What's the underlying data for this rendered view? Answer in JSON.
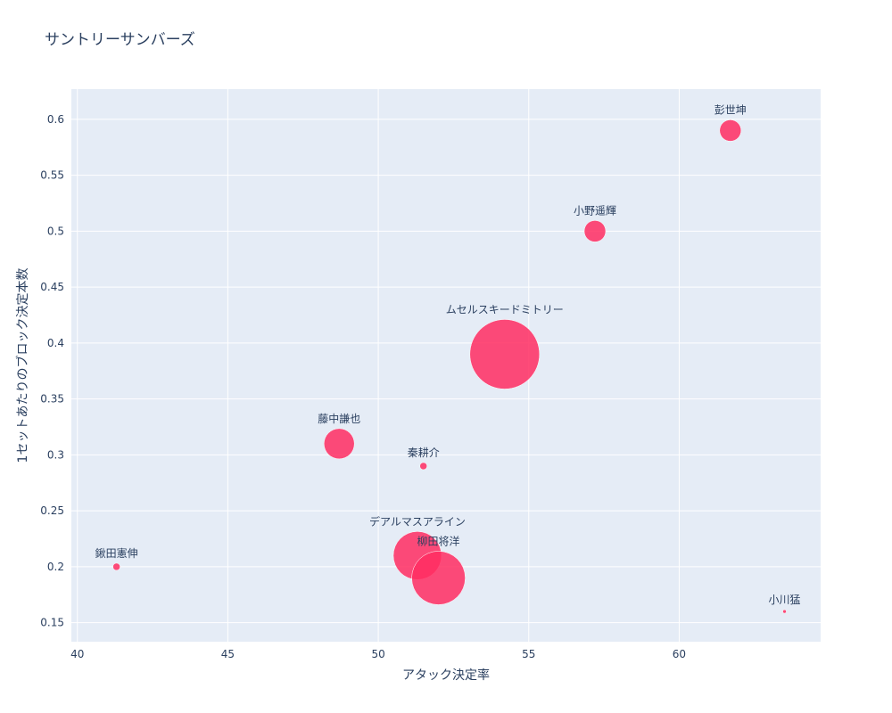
{
  "chart_data": {
    "type": "scatter",
    "title": "サントリーサンバーズ",
    "xlabel": "アタック決定率",
    "ylabel": "1セットあたりのブロック決定本数",
    "xlim": [
      39.8,
      64.7
    ],
    "ylim": [
      0.133,
      0.627
    ],
    "x_ticks": [
      40,
      45,
      50,
      55,
      60
    ],
    "y_ticks": [
      0.15,
      0.2,
      0.25,
      0.3,
      0.35,
      0.4,
      0.45,
      0.5,
      0.55,
      0.6
    ],
    "grid": true,
    "marker_color": "#ff2d62",
    "points": [
      {
        "label": "彭世坤",
        "x": 61.7,
        "y": 0.59,
        "size": 12
      },
      {
        "label": "小野遥輝",
        "x": 57.2,
        "y": 0.5,
        "size": 12
      },
      {
        "label": "ムセルスキードミトリー",
        "x": 54.2,
        "y": 0.39,
        "size": 39
      },
      {
        "label": "藤中謙也",
        "x": 48.7,
        "y": 0.31,
        "size": 17
      },
      {
        "label": "秦耕介",
        "x": 51.5,
        "y": 0.29,
        "size": 4
      },
      {
        "label": "デアルマスアライン",
        "x": 51.3,
        "y": 0.21,
        "size": 27
      },
      {
        "label": "柳田将洋",
        "x": 52.0,
        "y": 0.19,
        "size": 30
      },
      {
        "label": "鍬田憲伸",
        "x": 41.3,
        "y": 0.2,
        "size": 4
      },
      {
        "label": "小川猛",
        "x": 63.5,
        "y": 0.16,
        "size": 2
      }
    ]
  }
}
